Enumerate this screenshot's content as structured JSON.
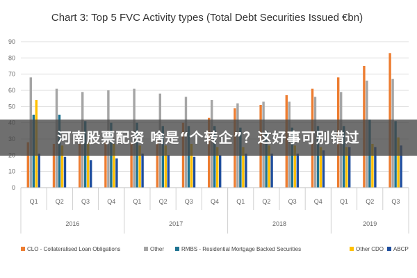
{
  "chart_data": {
    "type": "bar",
    "title": "Chart 3: Top 5 FVC Activity types (Total Debt Securities Issued €bn)",
    "xlabel": "",
    "ylabel": "",
    "ylim": [
      0,
      90
    ],
    "yticks": [
      0,
      10,
      20,
      30,
      40,
      50,
      60,
      70,
      80,
      90
    ],
    "grid": true,
    "legend_position": "bottom",
    "categories": [
      "Q1",
      "Q2",
      "Q3",
      "Q4",
      "Q1",
      "Q2",
      "Q3",
      "Q4",
      "Q1",
      "Q2",
      "Q3",
      "Q4",
      "Q1",
      "Q2",
      "Q3"
    ],
    "groups": [
      {
        "label": "2016",
        "count": 4
      },
      {
        "label": "2017",
        "count": 4
      },
      {
        "label": "2018",
        "count": 4
      },
      {
        "label": "2019",
        "count": 3
      }
    ],
    "series": [
      {
        "name": "CLO - Collateralised Loan Obligations",
        "color": "#ED7D31",
        "values": [
          28,
          27,
          27,
          28,
          28,
          29,
          40,
          43,
          49,
          51,
          57,
          61,
          68,
          75,
          83
        ]
      },
      {
        "name": "Other",
        "color": "#A5A5A5",
        "values": [
          68,
          61,
          59,
          60,
          61,
          58,
          56,
          54,
          52,
          53,
          53,
          56,
          59,
          66,
          67
        ]
      },
      {
        "name": "RMBS - Residential Mortgage Backed Securities",
        "color": "#1F7391",
        "values": [
          45,
          45,
          41,
          40,
          40,
          38,
          38,
          38,
          37,
          35,
          37,
          38,
          38,
          42,
          41
        ]
      },
      {
        "name": "Other CDO",
        "color": "#FFC000",
        "values": [
          54,
          26,
          28,
          27,
          26,
          26,
          27,
          25,
          25,
          26,
          26,
          25,
          25,
          27,
          31
        ]
      },
      {
        "name": "ABCP",
        "color": "#1F4E9E",
        "values": [
          21,
          19,
          17,
          18,
          21,
          20,
          19,
          20,
          21,
          21,
          21,
          23,
          25,
          25,
          26
        ]
      }
    ]
  },
  "banner": {
    "text": "河南股票配资 啥是“个转企”？这好事可别错过"
  }
}
